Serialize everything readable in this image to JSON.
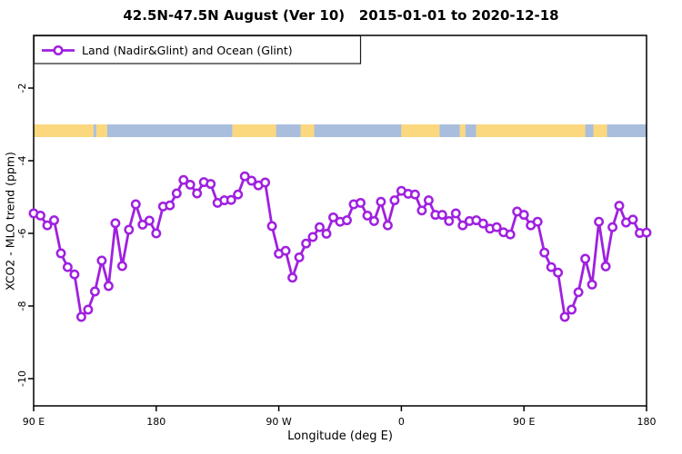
{
  "header": {
    "title": "42.5N-47.5N August (Ver 10)   2015-01-01 to 2020-12-18"
  },
  "legend": {
    "label": "Land (Nadir&Glint) and Ocean (Glint)"
  },
  "colors": {
    "series": "#A020E0",
    "marker_fill": "#FFFFFF",
    "land": "#FBD77E",
    "ocean": "#A9BEDC",
    "axis": "#000000"
  },
  "chart_data": {
    "type": "line",
    "title": "42.5N-47.5N August (Ver 10)   2015-01-01 to 2020-12-18",
    "xlabel": "Longitude (deg E)",
    "ylabel": "XCO2 - MLO trend (ppm)",
    "legend_entries": [
      "Land (Nadir&Glint) and Ocean (Glint)"
    ],
    "legend_position": "top-left",
    "grid": false,
    "marker": "open-circle",
    "xlim": [
      90,
      540
    ],
    "ylim": [
      -10.75,
      -0.55
    ],
    "x_ticks": [
      {
        "pos": 90,
        "label": "90 E"
      },
      {
        "pos": 180,
        "label": "180"
      },
      {
        "pos": 270,
        "label": "90 W"
      },
      {
        "pos": 360,
        "label": "0"
      },
      {
        "pos": 450,
        "label": "90 E"
      },
      {
        "pos": 540,
        "label": "180"
      }
    ],
    "y_ticks": [
      -2,
      -4,
      -6,
      -8,
      -10
    ],
    "x_start": 90,
    "x_step": 5,
    "x_note": "longitude unwrapped eastward from 90E across 180, 90W, 0, 90E to 180 (450 deg span)",
    "values": [
      -5.45,
      -5.51,
      -5.78,
      -5.64,
      -6.55,
      -6.93,
      -7.13,
      -8.3,
      -8.1,
      -7.6,
      -6.75,
      -7.45,
      -5.72,
      -6.9,
      -5.9,
      -5.2,
      -5.76,
      -5.65,
      -6.0,
      -5.26,
      -5.23,
      -4.9,
      -4.53,
      -4.66,
      -4.9,
      -4.59,
      -4.64,
      -5.16,
      -5.09,
      -5.08,
      -4.93,
      -4.43,
      -4.55,
      -4.68,
      -4.6,
      -5.8,
      -6.56,
      -6.48,
      -7.22,
      -6.66,
      -6.28,
      -6.1,
      -5.83,
      -6.01,
      -5.56,
      -5.68,
      -5.64,
      -5.2,
      -5.16,
      -5.51,
      -5.66,
      -5.13,
      -5.78,
      -5.09,
      -4.83,
      -4.91,
      -4.93,
      -5.37,
      -5.09,
      -5.49,
      -5.49,
      -5.66,
      -5.45,
      -5.78,
      -5.66,
      -5.64,
      -5.73,
      -5.87,
      -5.83,
      -5.97,
      -6.03,
      -5.4,
      -5.49,
      -5.78,
      -5.68,
      -6.53,
      -6.93,
      -7.08,
      -8.3,
      -8.1,
      -7.62,
      -6.7,
      -7.41,
      -5.68,
      -6.91,
      -5.83,
      -5.24,
      -5.7,
      -5.62,
      -5.99,
      -5.98
    ],
    "map_band": {
      "description": "world coastline strip for latitude band 42.5N-47.5N",
      "value_top": -3.0,
      "value_bottom": -3.35,
      "segments": [
        {
          "from": 90,
          "to": 134,
          "type": "land"
        },
        {
          "from": 134,
          "to": 136,
          "type": "ocean"
        },
        {
          "from": 136,
          "to": 144,
          "type": "land"
        },
        {
          "from": 144,
          "to": 236,
          "type": "ocean"
        },
        {
          "from": 236,
          "to": 268,
          "type": "land"
        },
        {
          "from": 268,
          "to": 286,
          "type": "ocean"
        },
        {
          "from": 286,
          "to": 296,
          "type": "land"
        },
        {
          "from": 296,
          "to": 360,
          "type": "ocean"
        },
        {
          "from": 360,
          "to": 388,
          "type": "land"
        },
        {
          "from": 388,
          "to": 403,
          "type": "ocean"
        },
        {
          "from": 403,
          "to": 407,
          "type": "land"
        },
        {
          "from": 407,
          "to": 415,
          "type": "ocean"
        },
        {
          "from": 415,
          "to": 495,
          "type": "land"
        },
        {
          "from": 495,
          "to": 501,
          "type": "ocean"
        },
        {
          "from": 501,
          "to": 511,
          "type": "land"
        },
        {
          "from": 511,
          "to": 540,
          "type": "ocean"
        }
      ]
    }
  }
}
